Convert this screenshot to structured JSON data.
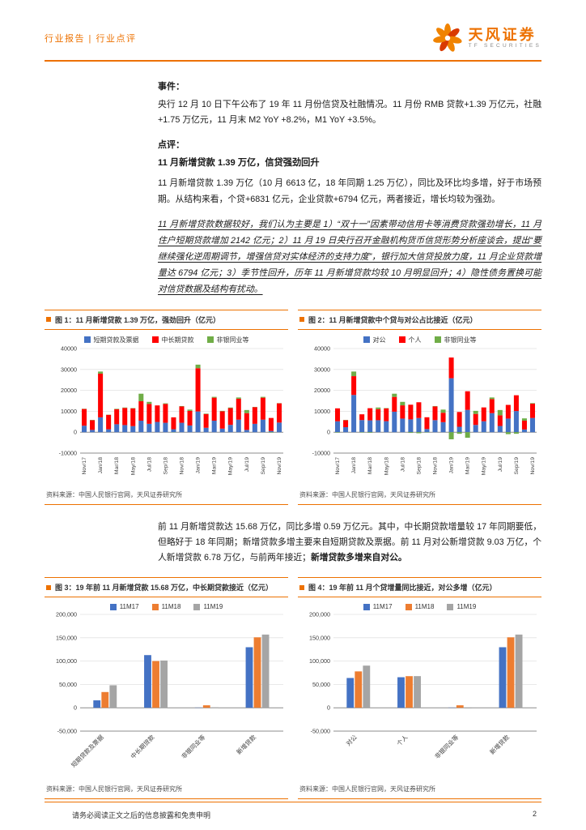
{
  "header": {
    "report_type": "行业报告 | 行业点评",
    "brand_cn": "天风证券",
    "brand_en": "TF SECURITIES",
    "accent_color": "#ED7100"
  },
  "sections": {
    "event_label": "事件：",
    "event_text": "央行 12 月 10 日下午公布了 19 年 11 月份信贷及社融情况。11 月份 RMB 贷款+1.39 万亿元，社融+1.75 万亿元，11 月末 M2 YoY +8.2%，M1 YoY +3.5%。",
    "comment_label": "点评：",
    "h1": "11 月新增贷款 1.39 万亿，信贷强劲回升",
    "p1": "11 月新增贷款 1.39 万亿（10 月 6613 亿，18 年同期 1.25 万亿），同比及环比均多增，好于市场预期。从结构来看，个贷+6831 亿元，企业贷款+6794 亿元，两者接近，增长均较为强劲。",
    "p2": "11 月新增贷款数据较好，我们认为主要是 1）“双十一”因素带动信用卡等消费贷款强劲增长，11 月住户短期贷款增加 2142 亿元；2）11 月 19 日央行召开金融机构货币信贷形势分析座谈会，提出“要继续强化逆周期调节，增强信贷对实体经济的支持力度”，银行加大信贷投放力度，11 月企业贷款增量达 6794 亿元；3）季节性回升，历年 11 月新增贷款均较 10 月明显回升；4）隐性债务置换可能对信贷数据及结构有扰动。",
    "p3_normal": "前 11 月新增贷款达 15.68 万亿，同比多增 0.59 万亿元。其中，中长期贷款增量较 17 年同期要低，但略好于 18 年同期；新增贷款多增主要来自短期贷款及票据。前 11 月对公新增贷款 9.03 万亿，个人新增贷款 6.78 万亿，与前两年接近；",
    "p3_bold": "新增贷款多增来自对公。"
  },
  "source_text": "资料来源：中国人民银行官网，天风证券研究所",
  "footer": {
    "disclaimer": "请务必阅读正文之后的信息披露和免责申明",
    "page_number": "2"
  },
  "chart_data": [
    {
      "type": "bar",
      "mode": "stacked",
      "title": "图 1：11 月新增贷款 1.39 万亿，强劲回升（亿元）",
      "unit": "亿元",
      "ylim": [
        -10000,
        40000
      ],
      "grid": true,
      "legend_position": "top",
      "tick_every": 2,
      "yticks": [
        {
          "v": 40000,
          "label": "40000"
        },
        {
          "v": 30000,
          "label": "30000"
        },
        {
          "v": 20000,
          "label": "20000"
        },
        {
          "v": 10000,
          "label": "10000"
        },
        {
          "v": 0,
          "label": "0"
        },
        {
          "v": -10000,
          "label": "-10000"
        }
      ],
      "categories": [
        "Nov/17",
        "Dec/17",
        "Jan/18",
        "Feb/18",
        "Mar/18",
        "Apr/18",
        "May/18",
        "Jun/18",
        "Jul/18",
        "Aug/18",
        "Sep/18",
        "Oct/18",
        "Nov/18",
        "Dec/18",
        "Jan/19",
        "Feb/19",
        "Mar/19",
        "Apr/19",
        "May/19",
        "Jun/19",
        "Jul/19",
        "Aug/19",
        "Sep/19",
        "Oct/19",
        "Nov/19"
      ],
      "series": [
        {
          "name": "短期贷款及票据",
          "color": "#4472C4",
          "values": [
            3100,
            1100,
            7100,
            1400,
            3800,
            3400,
            2900,
            5500,
            4000,
            4900,
            4500,
            1400,
            4500,
            3200,
            9900,
            2100,
            5500,
            1700,
            3500,
            6000,
            1100,
            4000,
            6000,
            600,
            4600
          ]
        },
        {
          "name": "中长期贷款",
          "color": "#FF0000",
          "values": [
            8000,
            4600,
            20900,
            6900,
            7200,
            8200,
            8500,
            9300,
            9500,
            7900,
            9000,
            5700,
            7800,
            7000,
            20700,
            6600,
            11000,
            8300,
            8000,
            10000,
            8000,
            8000,
            10500,
            6200,
            9200
          ]
        },
        {
          "name": "非银同业等",
          "color": "#70AD47",
          "values": [
            100,
            150,
            1000,
            100,
            200,
            200,
            150,
            3600,
            1000,
            0,
            300,
            -100,
            200,
            600,
            1700,
            200,
            400,
            200,
            300,
            600,
            1500,
            100,
            400,
            -200,
            100
          ]
        }
      ]
    },
    {
      "type": "bar",
      "mode": "stacked",
      "title": "图 2：11 月新增贷款中个贷与对公占比接近（亿元）",
      "unit": "亿元",
      "ylim": [
        -10000,
        40000
      ],
      "grid": true,
      "legend_position": "top",
      "tick_every": 2,
      "yticks": [
        {
          "v": 40000,
          "label": "40000"
        },
        {
          "v": 30000,
          "label": "30000"
        },
        {
          "v": 20000,
          "label": "20000"
        },
        {
          "v": 10000,
          "label": "10000"
        },
        {
          "v": 0,
          "label": "0"
        },
        {
          "v": -10000,
          "label": "-10000"
        }
      ],
      "categories": [
        "Nov/17",
        "Dec/17",
        "Jan/18",
        "Feb/18",
        "Mar/18",
        "Apr/18",
        "May/18",
        "Jun/18",
        "Jul/18",
        "Aug/18",
        "Sep/18",
        "Oct/18",
        "Nov/18",
        "Dec/18",
        "Jan/19",
        "Feb/19",
        "Mar/19",
        "Apr/19",
        "May/19",
        "Jun/19",
        "Jul/19",
        "Aug/19",
        "Sep/19",
        "Oct/19",
        "Nov/19"
      ],
      "series": [
        {
          "name": "对公",
          "color": "#4472C4",
          "values": [
            5200,
            2400,
            17800,
            5800,
            5650,
            5730,
            5260,
            9800,
            6500,
            6130,
            6770,
            1500,
            5760,
            4800,
            25800,
            2600,
            10660,
            3470,
            5220,
            9100,
            2970,
            6510,
            10110,
            1300,
            6790
          ]
        },
        {
          "name": "个人",
          "color": "#FF0000",
          "values": [
            6200,
            3300,
            9000,
            2750,
            5820,
            5280,
            6140,
            7070,
            6340,
            7010,
            7540,
            5640,
            6560,
            4500,
            9900,
            7060,
            8910,
            5260,
            6620,
            6710,
            5110,
            6540,
            7550,
            4210,
            6830
          ]
        },
        {
          "name": "非银同业等",
          "color": "#70AD47",
          "values": [
            -200,
            150,
            2200,
            -150,
            -270,
            790,
            150,
            1530,
            1660,
            -340,
            -510,
            -140,
            180,
            1500,
            -3400,
            -760,
            -2670,
            1470,
            -40,
            790,
            2520,
            -950,
            -760,
            1090,
            280
          ]
        }
      ]
    },
    {
      "type": "bar",
      "mode": "grouped",
      "title": "图 3：19 年前 11 月新增贷款 15.68 万亿，中长期贷款接近（亿元）",
      "unit": "亿元",
      "ylim": [
        -50000,
        200000
      ],
      "grid": true,
      "legend_position": "top",
      "yticks": [
        {
          "v": 200000,
          "label": "200,000"
        },
        {
          "v": 150000,
          "label": "150,000"
        },
        {
          "v": 100000,
          "label": "100,000"
        },
        {
          "v": 50000,
          "label": "50,000"
        },
        {
          "v": 0,
          "label": "0"
        },
        {
          "v": -50000,
          "label": "-50,000"
        }
      ],
      "categories": [
        "短期贷款及票据",
        "中长期贷款",
        "非银同业等",
        "新增贷款"
      ],
      "series": [
        {
          "name": "11M17",
          "color": "#4472C4",
          "values": [
            15900,
            112800,
            500,
            129700
          ]
        },
        {
          "name": "11M18",
          "color": "#ED7D31",
          "values": [
            33700,
            100100,
            5300,
            150900
          ]
        },
        {
          "name": "11M19",
          "color": "#A5A5A5",
          "values": [
            48200,
            101200,
            900,
            156800
          ]
        }
      ]
    },
    {
      "type": "bar",
      "mode": "grouped",
      "title": "图 4：19 年前 11 月个贷增量同比接近，对公多增（亿元）",
      "unit": "亿元",
      "ylim": [
        -50000,
        200000
      ],
      "grid": true,
      "legend_position": "top",
      "yticks": [
        {
          "v": 200000,
          "label": "200,000"
        },
        {
          "v": 150000,
          "label": "150,000"
        },
        {
          "v": 100000,
          "label": "100,000"
        },
        {
          "v": 50000,
          "label": "50,000"
        },
        {
          "v": 0,
          "label": "0"
        },
        {
          "v": -50000,
          "label": "-50,000"
        }
      ],
      "categories": [
        "对公",
        "个人",
        "非银同业等",
        "新增贷款"
      ],
      "series": [
        {
          "name": "11M17",
          "color": "#4472C4",
          "values": [
            63800,
            65400,
            500,
            129700
          ]
        },
        {
          "name": "11M18",
          "color": "#ED7D31",
          "values": [
            77900,
            67700,
            5300,
            150900
          ]
        },
        {
          "name": "11M19",
          "color": "#A5A5A5",
          "values": [
            90300,
            67800,
            -1300,
            156800
          ]
        }
      ]
    }
  ]
}
